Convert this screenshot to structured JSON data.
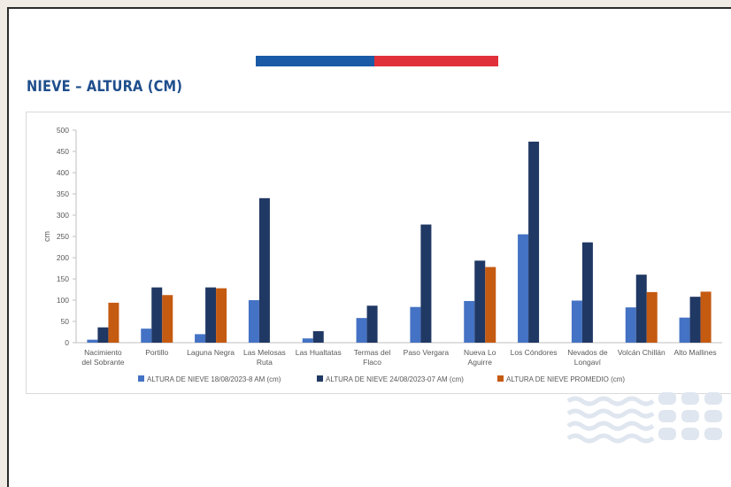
{
  "slide": {
    "title": "NIEVE – ALTURA (CM)",
    "colors": {
      "title": "#1f4e8c",
      "flag_blue": "#1b5aa6",
      "flag_red": "#e0313a",
      "watermark": "#dfe6ef",
      "background": "#ffffff"
    },
    "decorations": [
      "flag-stripe",
      "wave-watermark-icon"
    ]
  },
  "chart_data": {
    "type": "bar",
    "title": "",
    "xlabel": "",
    "ylabel": "cm",
    "ylim": [
      0,
      500
    ],
    "yticks": [
      0,
      50,
      100,
      150,
      200,
      250,
      300,
      350,
      400,
      450,
      500
    ],
    "grid": false,
    "legend_position": "bottom",
    "categories": [
      [
        "Nacimiento",
        "del Sobrante"
      ],
      [
        "Portillo"
      ],
      [
        "Laguna Negra"
      ],
      [
        "Las Melosas",
        "Ruta"
      ],
      [
        "Las Hualtatas"
      ],
      [
        "Termas del",
        "Flaco"
      ],
      [
        "Paso Vergara"
      ],
      [
        "Nueva Lo",
        "Aguirre"
      ],
      [
        "Los Cóndores"
      ],
      [
        "Nevados de",
        "Longaví"
      ],
      [
        "Volcán Chillán"
      ],
      [
        "Alto Mallines"
      ]
    ],
    "series": [
      {
        "name": "ALTURA DE NIEVE 18/08/2023-8 AM (cm)",
        "color": "#4472c4",
        "values": [
          7,
          33,
          20,
          100,
          10,
          58,
          84,
          98,
          255,
          99,
          83,
          59
        ]
      },
      {
        "name": "ALTURA DE NIEVE 24/08/2023-07 AM (cm)",
        "color": "#203864",
        "values": [
          36,
          130,
          130,
          340,
          27,
          87,
          278,
          193,
          473,
          236,
          160,
          108
        ]
      },
      {
        "name": "ALTURA DE NIEVE PROMEDIO (cm)",
        "color": "#c55a11",
        "values": [
          94,
          112,
          128,
          null,
          null,
          null,
          null,
          178,
          null,
          null,
          119,
          120
        ]
      }
    ]
  }
}
